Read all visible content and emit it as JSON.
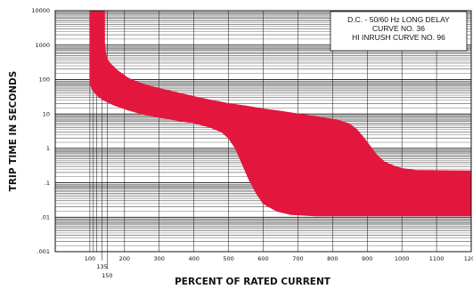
{
  "chart_data": {
    "type": "area",
    "xlabel": "PERCENT OF RATED CURRENT",
    "ylabel": "TRIP TIME IN SECONDS",
    "xlim": [
      0,
      1200
    ],
    "ylim": [
      0.001,
      10000
    ],
    "yscale": "log",
    "x_ticks": [
      {
        "value": 100,
        "label": "100"
      },
      {
        "value": 135,
        "label": "135"
      },
      {
        "value": 150,
        "label": "150"
      },
      {
        "value": 200,
        "label": "200"
      },
      {
        "value": 300,
        "label": "300"
      },
      {
        "value": 400,
        "label": "400"
      },
      {
        "value": 500,
        "label": "500"
      },
      {
        "value": 600,
        "label": "600"
      },
      {
        "value": 700,
        "label": "700"
      },
      {
        "value": 800,
        "label": "800"
      },
      {
        "value": 900,
        "label": "900"
      },
      {
        "value": 1000,
        "label": "1000"
      },
      {
        "value": 1100,
        "label": "1100"
      },
      {
        "value": 1200,
        "label": "1200"
      }
    ],
    "y_ticks": [
      {
        "value": 10000,
        "label": "10000"
      },
      {
        "value": 1000,
        "label": "1000"
      },
      {
        "value": 100,
        "label": "100"
      },
      {
        "value": 10,
        "label": "10"
      },
      {
        "value": 1,
        "label": "1"
      },
      {
        "value": 0.1,
        "label": ".1"
      },
      {
        "value": 0.01,
        "label": ".01"
      },
      {
        "value": 0.001,
        "label": ".001"
      }
    ],
    "legend_lines": [
      "D.C. - 50/60 Hz LONG DELAY",
      "CURVE NO. 36",
      "HI INRUSH CURVE NO. 96"
    ],
    "legend_position": "top-right",
    "grid": true,
    "band_color": "#e3173e",
    "band_upper": {
      "x": [
        142,
        142,
        144,
        150,
        160,
        180,
        210,
        250,
        300,
        350,
        400,
        450,
        500,
        550,
        600,
        650,
        700,
        750,
        800,
        830,
        850,
        870,
        890,
        910,
        930,
        950,
        980,
        1000,
        1040,
        1200
      ],
      "y": [
        10000,
        1200,
        700,
        380,
        280,
        180,
        110,
        75,
        55,
        42,
        32,
        25,
        20,
        17,
        14,
        12,
        10,
        8.5,
        7,
        6,
        5,
        3.5,
        2,
        1.1,
        0.6,
        0.4,
        0.3,
        0.26,
        0.23,
        0.22
      ]
    },
    "band_lower": {
      "x": [
        100,
        100,
        102,
        108,
        120,
        140,
        170,
        210,
        250,
        300,
        350,
        400,
        450,
        480,
        500,
        520,
        540,
        560,
        580,
        600,
        640,
        680,
        750,
        1200
      ],
      "y": [
        10000,
        100,
        70,
        50,
        35,
        25,
        18,
        13,
        10,
        8,
        6.5,
        5.5,
        4,
        3,
        2,
        1,
        0.35,
        0.12,
        0.05,
        0.025,
        0.015,
        0.012,
        0.011,
        0.011
      ]
    }
  }
}
